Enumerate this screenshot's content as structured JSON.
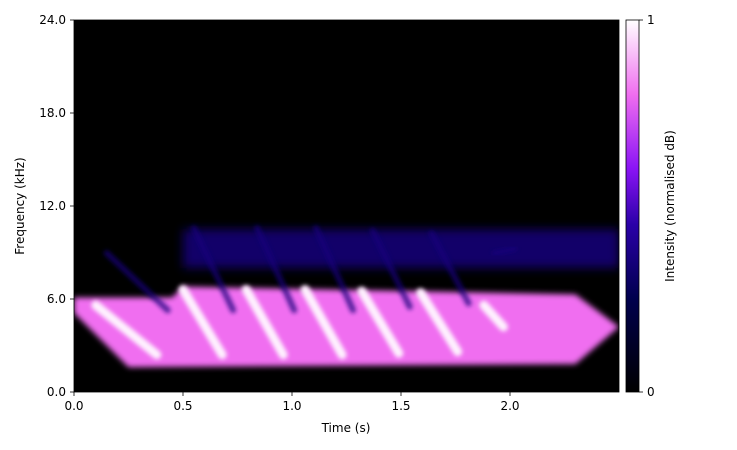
{
  "chart_data": {
    "type": "heatmap",
    "title": "",
    "xlabel": "Time (s)",
    "ylabel": "Frequency (kHz)",
    "xlim": [
      0.0,
      2.5
    ],
    "ylim": [
      0.0,
      24.0
    ],
    "x_ticks": [
      0.0,
      0.5,
      1.0,
      1.5,
      2.0
    ],
    "x_tick_labels": [
      "0.0",
      "0.5",
      "1.0",
      "1.5",
      "2.0"
    ],
    "y_ticks": [
      0.0,
      6.0,
      12.0,
      18.0,
      24.0
    ],
    "y_tick_labels": [
      "0.0",
      "6.0",
      "12.0",
      "18.0",
      "24.0"
    ],
    "grid": false,
    "colormap": "dark-to-white (black, navy, violet, magenta, white)",
    "colorbar": {
      "label": "Intensity (normalised dB)",
      "range": [
        0,
        1
      ],
      "tick_labels": [
        "0",
        "1"
      ]
    },
    "band": {
      "description": "main energy band",
      "t_start": 0.0,
      "t_end": 2.5,
      "f_low": 1.6,
      "f_high_start": 6.1,
      "f_high_after_0_5s": 6.8,
      "intensity": 0.8
    },
    "harmonic_band": {
      "t_start": 0.5,
      "t_end": 2.5,
      "f_low": 8.0,
      "f_high": 10.5,
      "intensity": 0.35
    },
    "sweeps": [
      {
        "t_start": 0.1,
        "f_start": 5.6,
        "t_end": 0.38,
        "f_end": 2.4
      },
      {
        "t_start": 0.5,
        "f_start": 6.6,
        "t_end": 0.68,
        "f_end": 2.4
      },
      {
        "t_start": 0.79,
        "f_start": 6.6,
        "t_end": 0.96,
        "f_end": 2.4
      },
      {
        "t_start": 1.06,
        "f_start": 6.6,
        "t_end": 1.23,
        "f_end": 2.4
      },
      {
        "t_start": 1.32,
        "f_start": 6.5,
        "t_end": 1.49,
        "f_end": 2.5
      },
      {
        "t_start": 1.59,
        "f_start": 6.4,
        "t_end": 1.76,
        "f_end": 2.6
      },
      {
        "t_start": 1.88,
        "f_start": 5.6,
        "t_end": 1.97,
        "f_end": 4.2
      }
    ]
  }
}
